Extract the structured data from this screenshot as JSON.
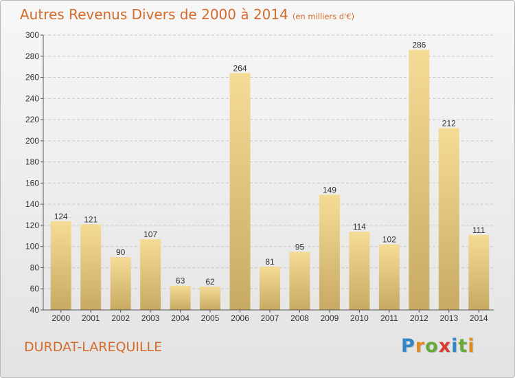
{
  "title": {
    "main": "Autres Revenus Divers de 2000 à 2014",
    "unit": "(en milliers d'€)"
  },
  "commune": "DURDAT-LAREQUILLE",
  "logo": {
    "letters": [
      "P",
      "r",
      "o",
      "x",
      "i",
      "t",
      "i"
    ]
  },
  "colors": {
    "title": "#d46a2a",
    "bar_light": "#f5dc96",
    "bar_dark": "#c8aa62",
    "axis": "#555555",
    "grid": "#c8c8c8"
  },
  "chart_data": {
    "type": "bar",
    "title": "Autres Revenus Divers de 2000 à 2014",
    "subtitle": "(en milliers d'€)",
    "xlabel": "",
    "ylabel": "",
    "categories": [
      "2000",
      "2001",
      "2002",
      "2003",
      "2004",
      "2005",
      "2006",
      "2007",
      "2008",
      "2009",
      "2010",
      "2011",
      "2012",
      "2013",
      "2014"
    ],
    "values": [
      124,
      121,
      90,
      107,
      63,
      62,
      264,
      81,
      95,
      149,
      114,
      102,
      286,
      212,
      111
    ],
    "ylim": [
      40,
      300
    ],
    "yticks": [
      40,
      60,
      80,
      100,
      120,
      140,
      160,
      180,
      200,
      220,
      240,
      260,
      280,
      300
    ],
    "grid": true,
    "data_labels": true,
    "legend": "none"
  }
}
